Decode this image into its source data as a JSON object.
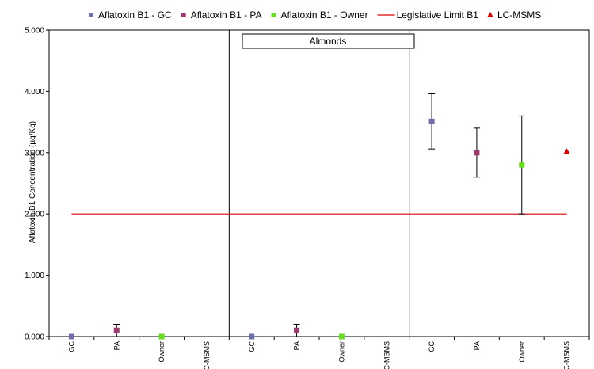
{
  "chart_data": {
    "type": "scatter",
    "ylabel": "Aflatoxin B1 Concentration (µg/Kg)",
    "ylim": [
      0,
      5
    ],
    "yticks": [
      "0.000",
      "1.000",
      "2.000",
      "3.000",
      "4.000",
      "5.000"
    ],
    "legend_placement": "top",
    "panel_label": "Almonds",
    "x_categories": [
      "GC",
      "PA",
      "Owner",
      "C-MSMS",
      "GC",
      "PA",
      "Owner",
      "C-MSMS",
      "GC",
      "PA",
      "Owner",
      "C-MSMS"
    ],
    "series": [
      {
        "name": "Aflatoxin B1 - GC",
        "marker": "square",
        "color": "#6e6fa8",
        "points": [
          {
            "x": 1,
            "y": 0.0,
            "err_low": 0.0,
            "err_high": 0.0
          },
          {
            "x": 5,
            "y": 0.0,
            "err_low": 0.0,
            "err_high": 0.0
          },
          {
            "x": 9,
            "y": 3.51,
            "err_low": 3.06,
            "err_high": 3.96
          }
        ]
      },
      {
        "name": "Aflatoxin B1 - PA",
        "marker": "square",
        "color": "#9c3a6f",
        "points": [
          {
            "x": 2,
            "y": 0.1,
            "err_low": 0.0,
            "err_high": 0.2
          },
          {
            "x": 6,
            "y": 0.1,
            "err_low": 0.0,
            "err_high": 0.2
          },
          {
            "x": 10,
            "y": 3.0,
            "err_low": 2.6,
            "err_high": 3.4
          }
        ]
      },
      {
        "name": "Aflatoxin B1 - Owner",
        "marker": "square",
        "color": "#66dd22",
        "points": [
          {
            "x": 3,
            "y": 0.0,
            "err_low": 0.0,
            "err_high": 0.0
          },
          {
            "x": 7,
            "y": 0.0,
            "err_low": 0.0,
            "err_high": 0.0
          },
          {
            "x": 11,
            "y": 2.8,
            "err_low": 2.0,
            "err_high": 3.6
          }
        ]
      },
      {
        "name": "Legislative Limit B1",
        "type": "line",
        "color": "#dd0000",
        "points": [
          {
            "x": 1,
            "y": 2.0
          },
          {
            "x": 12,
            "y": 2.0
          }
        ]
      },
      {
        "name": "LC-MSMS",
        "marker": "triangle",
        "color": "#dd0000",
        "points": [
          {
            "x": 12,
            "y": 3.02
          }
        ]
      }
    ]
  }
}
